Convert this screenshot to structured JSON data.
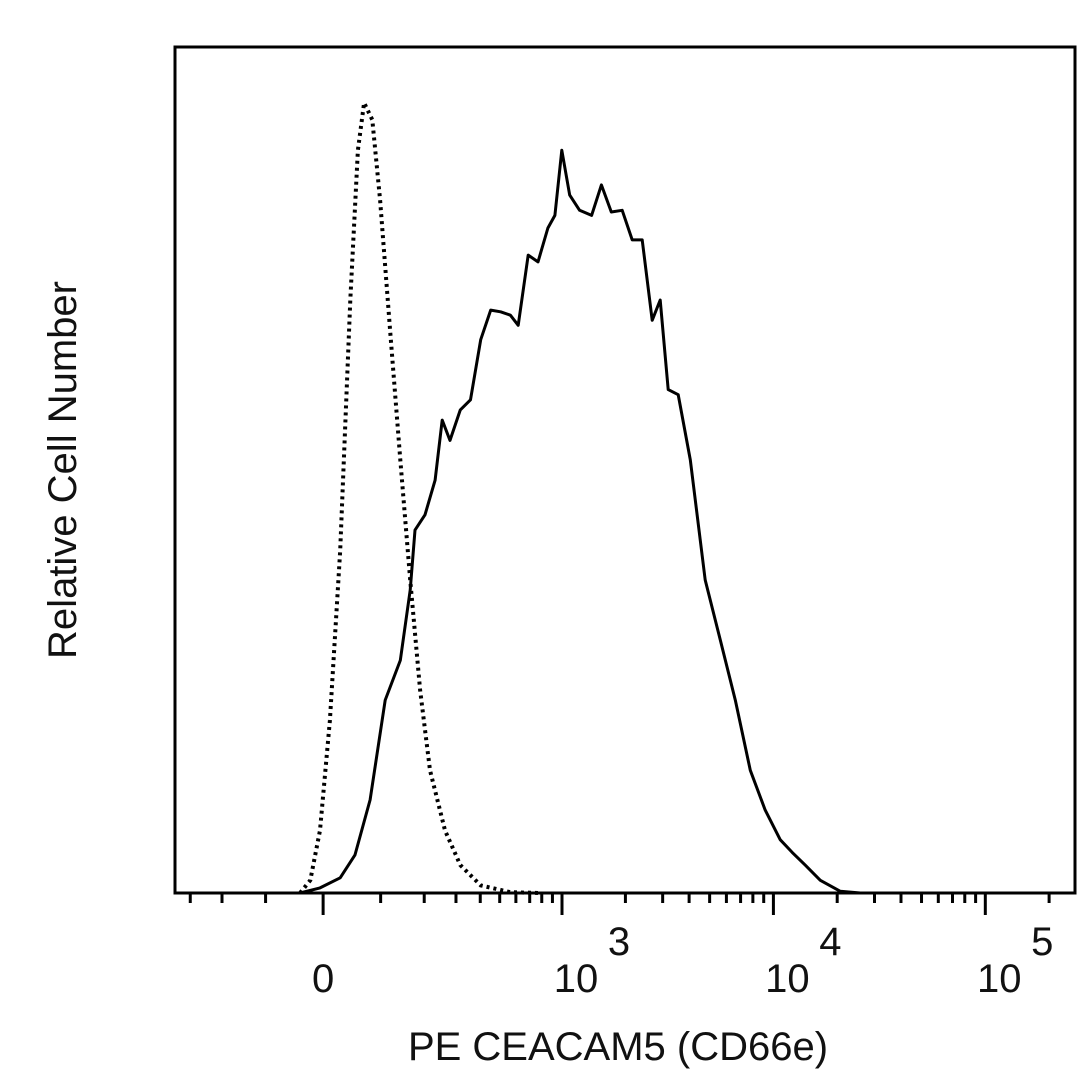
{
  "chart_data": {
    "type": "line",
    "xlabel": "PE CEACAM5 (CD66e)",
    "ylabel": "Relative Cell Number",
    "xscale": "biexponential",
    "xlim": [
      -360,
      265000
    ],
    "ylim": [
      0,
      100
    ],
    "xticks": [
      0,
      {
        "value": 1000,
        "label": "10",
        "exponent": "3"
      },
      {
        "value": 10000,
        "label": "10",
        "exponent": "4"
      },
      {
        "value": 100000,
        "label": "10",
        "exponent": "5"
      }
    ],
    "minor_xticks": [
      -300,
      -200,
      -100,
      100,
      200,
      300,
      400,
      500,
      600,
      700,
      800,
      900,
      2000,
      3000,
      4000,
      5000,
      6000,
      7000,
      8000,
      9000,
      20000,
      30000,
      40000,
      50000,
      60000,
      70000,
      80000,
      90000,
      200000
    ],
    "series": [
      {
        "color": "#000000",
        "style": "solid",
        "x": [
          -38,
          -5,
          28,
          53,
          80,
          109,
          141,
          164,
          176,
          202,
          231,
          253,
          279,
          316,
          357,
          402,
          451,
          505,
          564,
          616,
          688,
          767,
          856,
          925,
          998,
          1088,
          1213,
          1383,
          1539,
          1714,
          1931,
          2154,
          2401,
          2678,
          2921,
          3188,
          3554,
          4050,
          4767,
          5612,
          6606,
          7776,
          9150,
          10770,
          12270,
          14130,
          16640,
          20685,
          25700
        ],
        "values": [
          0,
          0.6,
          1.8,
          4.5,
          11,
          22.8,
          27.5,
          35.8,
          42.9,
          44.7,
          48.8,
          55.9,
          53.5,
          57.1,
          58.3,
          65.4,
          68.9,
          68.7,
          68.3,
          67.1,
          75.4,
          74.6,
          78.6,
          80.1,
          87.8,
          82.5,
          80.7,
          80.1,
          83.7,
          80.5,
          80.7,
          77.2,
          77.2,
          67.7,
          70.1,
          59.5,
          58.9,
          51.2,
          37,
          29.9,
          22.8,
          14.5,
          9.8,
          6.3,
          4.8,
          3.3,
          1.5,
          0.2,
          0
        ]
      },
      {
        "color": "#000000",
        "style": "dotted",
        "x": [
          -38,
          -21,
          -5,
          11,
          28,
          45,
          58,
          69,
          84,
          99,
          119,
          141,
          164,
          189,
          216,
          262,
          316,
          402,
          564,
          784
        ],
        "values": [
          0,
          1.5,
          7.4,
          20.4,
          40.5,
          70.1,
          87.8,
          93.4,
          91.4,
          81.9,
          66.5,
          51.2,
          37,
          24,
          14.5,
          7.4,
          3.3,
          0.9,
          0.1,
          0
        ]
      }
    ]
  }
}
